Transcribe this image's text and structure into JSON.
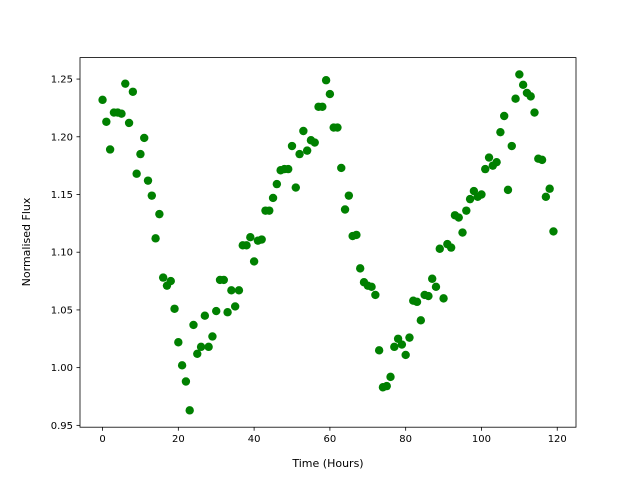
{
  "chart_data": {
    "type": "scatter",
    "x_label": "Time (Hours)",
    "y_label": "Normalised Flux",
    "series": [
      {
        "color": "#008000",
        "x": [
          0,
          1,
          2,
          3,
          4,
          5,
          6,
          7,
          8,
          9,
          10,
          11,
          12,
          13,
          14,
          15,
          16,
          17,
          18,
          19,
          20,
          21,
          22,
          23,
          24,
          25,
          26,
          27,
          28,
          29,
          30,
          31,
          32,
          33,
          34,
          35,
          36,
          37,
          38,
          39,
          40,
          41,
          42,
          43,
          44,
          45,
          46,
          47,
          48,
          49,
          50,
          51,
          52,
          53,
          54,
          55,
          56,
          57,
          58,
          59,
          60,
          61,
          62,
          63,
          64,
          65,
          66,
          67,
          68,
          69,
          70,
          71,
          72,
          73,
          74,
          75,
          76,
          77,
          78,
          79,
          80,
          81,
          82,
          83,
          84,
          85,
          86,
          87,
          88,
          89,
          90,
          91,
          92,
          93,
          94,
          95,
          96,
          97,
          98,
          99,
          100,
          101,
          102,
          103,
          104,
          105,
          106,
          107,
          108,
          109,
          110,
          111,
          112,
          113,
          114,
          115,
          116,
          117,
          118,
          119
        ],
        "values": [
          1.232,
          1.213,
          1.189,
          1.221,
          1.221,
          1.22,
          1.246,
          1.212,
          1.239,
          1.168,
          1.185,
          1.199,
          1.162,
          1.149,
          1.112,
          1.133,
          1.078,
          1.071,
          1.075,
          1.051,
          1.022,
          1.002,
          0.988,
          0.963,
          1.037,
          1.012,
          1.018,
          1.045,
          1.018,
          1.027,
          1.049,
          1.076,
          1.076,
          1.048,
          1.067,
          1.053,
          1.067,
          1.106,
          1.106,
          1.113,
          1.092,
          1.11,
          1.111,
          1.136,
          1.136,
          1.147,
          1.159,
          1.171,
          1.172,
          1.172,
          1.192,
          1.156,
          1.185,
          1.205,
          1.188,
          1.197,
          1.195,
          1.226,
          1.226,
          1.249,
          1.237,
          1.208,
          1.208,
          1.173,
          1.137,
          1.149,
          1.114,
          1.115,
          1.086,
          1.074,
          1.071,
          1.07,
          1.063,
          1.015,
          0.983,
          0.984,
          0.992,
          1.018,
          1.025,
          1.02,
          1.011,
          1.026,
          1.058,
          1.057,
          1.041,
          1.063,
          1.062,
          1.077,
          1.07,
          1.103,
          1.06,
          1.107,
          1.104,
          1.132,
          1.13,
          1.117,
          1.136,
          1.146,
          1.153,
          1.148,
          1.15,
          1.172,
          1.182,
          1.175,
          1.178,
          1.204,
          1.218,
          1.154,
          1.192,
          1.233,
          1.254,
          1.245,
          1.238,
          1.235,
          1.221,
          1.181,
          1.18,
          1.148,
          1.155,
          1.118
        ]
      }
    ],
    "xlim": [
      -5.95,
      124.95
    ],
    "xticks": [
      0,
      20,
      40,
      60,
      80,
      100,
      120
    ],
    "ylim": [
      0.9484,
      1.2686
    ],
    "yticks": [
      0.95,
      {
        "value": 1,
        "label": "1.00"
      },
      1.05,
      {
        "value": 1.1,
        "label": "1.10"
      },
      1.15,
      {
        "value": 1.2,
        "label": "1.20"
      },
      1.25
    ]
  }
}
